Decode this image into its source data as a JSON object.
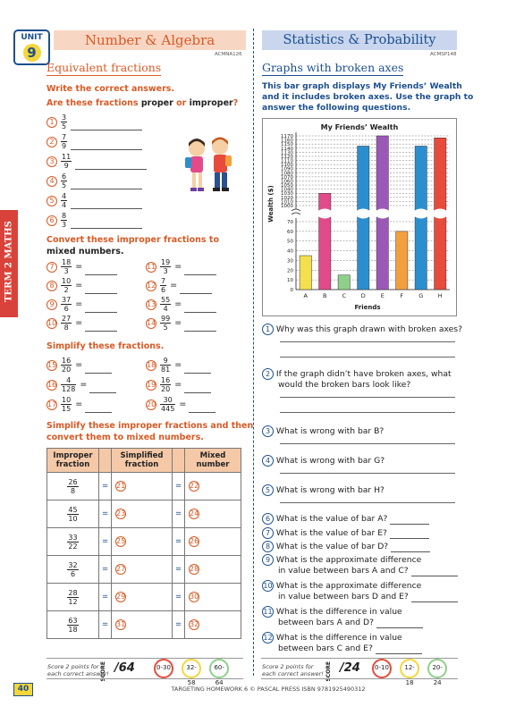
{
  "unit": {
    "label": "UNIT",
    "number": "9"
  },
  "side_tab": "TERM 2 MATHS",
  "left": {
    "strand_title": "Number & Algebra",
    "code": "ACMNA126",
    "section_title": "Equivalent fractions",
    "instruction": "Write the correct answers.",
    "proper_prompt_a": "Are these fractions ",
    "proper_word": "proper",
    "proper_or": " or ",
    "improper_word": "improper",
    "proper_q": "?",
    "proper_items": [
      {
        "num": "1",
        "n": "3",
        "d": "5"
      },
      {
        "num": "2",
        "n": "7",
        "d": "9"
      },
      {
        "num": "3",
        "n": "11",
        "d": "9"
      },
      {
        "num": "4",
        "n": "6",
        "d": "5"
      },
      {
        "num": "5",
        "n": "4",
        "d": "4"
      },
      {
        "num": "6",
        "n": "8",
        "d": "3"
      }
    ],
    "convert_title_1": "Convert these improper fractions to",
    "convert_title_2": "mixed numbers.",
    "convert_items": [
      {
        "num": "7",
        "n": "18",
        "d": "3"
      },
      {
        "num": "11",
        "n": "19",
        "d": "3"
      },
      {
        "num": "8",
        "n": "10",
        "d": "2"
      },
      {
        "num": "12",
        "n": "7",
        "d": "6"
      },
      {
        "num": "9",
        "n": "37",
        "d": "6"
      },
      {
        "num": "13",
        "n": "55",
        "d": "4"
      },
      {
        "num": "10",
        "n": "27",
        "d": "8"
      },
      {
        "num": "14",
        "n": "99",
        "d": "5"
      }
    ],
    "simplify_title": "Simplify these fractions.",
    "simplify_items": [
      {
        "num": "15",
        "n": "16",
        "d": "20"
      },
      {
        "num": "18",
        "n": "9",
        "d": "81"
      },
      {
        "num": "16",
        "n": "4",
        "d": "128"
      },
      {
        "num": "19",
        "n": "16",
        "d": "20"
      },
      {
        "num": "17",
        "n": "10",
        "d": "15"
      },
      {
        "num": "20",
        "n": "30",
        "d": "445"
      }
    ],
    "table_title_1": "Simplify these improper fractions and then",
    "table_title_2": "convert them to mixed numbers.",
    "table_headers": {
      "col1": "Improper fraction",
      "col2": "Simplified fraction",
      "col3": "Mixed number"
    },
    "table_rows": [
      {
        "n": "26",
        "d": "8",
        "a": "21",
        "b": "22"
      },
      {
        "n": "45",
        "d": "10",
        "a": "23",
        "b": "24"
      },
      {
        "n": "33",
        "d": "22",
        "a": "25",
        "b": "26"
      },
      {
        "n": "32",
        "d": "6",
        "a": "27",
        "b": "28"
      },
      {
        "n": "28",
        "d": "12",
        "a": "29",
        "b": "30"
      },
      {
        "n": "63",
        "d": "18",
        "a": "31",
        "b": "32"
      }
    ],
    "eq": "=",
    "score_note_1": "Score 2 points for",
    "score_note_2": "each correct answer!",
    "score_label": "SCORE",
    "score_total": "/64",
    "score_ranges": [
      "0-30",
      "32-58",
      "60-64"
    ]
  },
  "right": {
    "strand_title": "Statistics & Probability",
    "code": "ACMSP148",
    "section_title": "Graphs with broken axes",
    "intro_1": "This bar graph displays My Friends’ Wealth",
    "intro_2": "and it includes broken axes. Use the graph to",
    "intro_3": "answer the following questions.",
    "questions": [
      {
        "num": "1",
        "text": "Why was this graph drawn with broken axes?"
      },
      {
        "num": "2",
        "text": "If the graph didn’t have broken axes, what",
        "text2": "would the broken bars look like?"
      },
      {
        "num": "3",
        "text": "What is wrong with bar B?"
      },
      {
        "num": "4",
        "text": "What is wrong with bar G?"
      },
      {
        "num": "5",
        "text": "What is wrong with bar H?"
      },
      {
        "num": "6",
        "text": "What is the value of bar A?"
      },
      {
        "num": "7",
        "text": "What is the value of bar E?"
      },
      {
        "num": "8",
        "text": "What is the value of bar D?"
      },
      {
        "num": "9",
        "text": "What is the approximate difference",
        "text2": "in value between bars A and C?"
      },
      {
        "num": "10",
        "text": "What is the approximate difference",
        "text2": "in value between bars D and E?"
      },
      {
        "num": "11",
        "text": "What is the difference in value",
        "text2": "between bars A and D?"
      },
      {
        "num": "12",
        "text": "What is the difference in value",
        "text2": "between bars C and E?"
      }
    ],
    "score_note_1": "Score 2 points for",
    "score_note_2": "each correct answer!",
    "score_label": "SCORE",
    "score_total": "/24",
    "score_ranges": [
      "0-10",
      "12-18",
      "20-24"
    ]
  },
  "chart_data": {
    "type": "bar",
    "title": "My Friends’ Wealth",
    "xlabel": "Friends",
    "ylabel": "Wealth ($)",
    "categories": [
      "A",
      "B",
      "C",
      "D",
      "E",
      "F",
      "G",
      "H"
    ],
    "values": [
      35,
      1030,
      15,
      1145,
      1170,
      60,
      1145,
      1165
    ],
    "broken_axis": true,
    "lower_ticks": [
      0,
      10,
      20,
      30,
      40,
      50,
      60,
      70
    ],
    "upper_ticks": [
      1000,
      1010,
      1020,
      1030,
      1040,
      1050,
      1060,
      1070,
      1080,
      1090,
      1100,
      1110,
      1120,
      1130,
      1140,
      1150,
      1160,
      1170
    ],
    "colors": [
      "#f4e04d",
      "#e24a8a",
      "#8fcf8a",
      "#2b8fcf",
      "#9b59b6",
      "#f2a03d",
      "#2b8fcf",
      "#e64b3c"
    ],
    "grid": "dashed horizontal"
  },
  "footer": {
    "page_number": "40",
    "credit": "TARGETING HOMEWORK 6 © PASCAL PRESS ISBN 9781925490312"
  }
}
